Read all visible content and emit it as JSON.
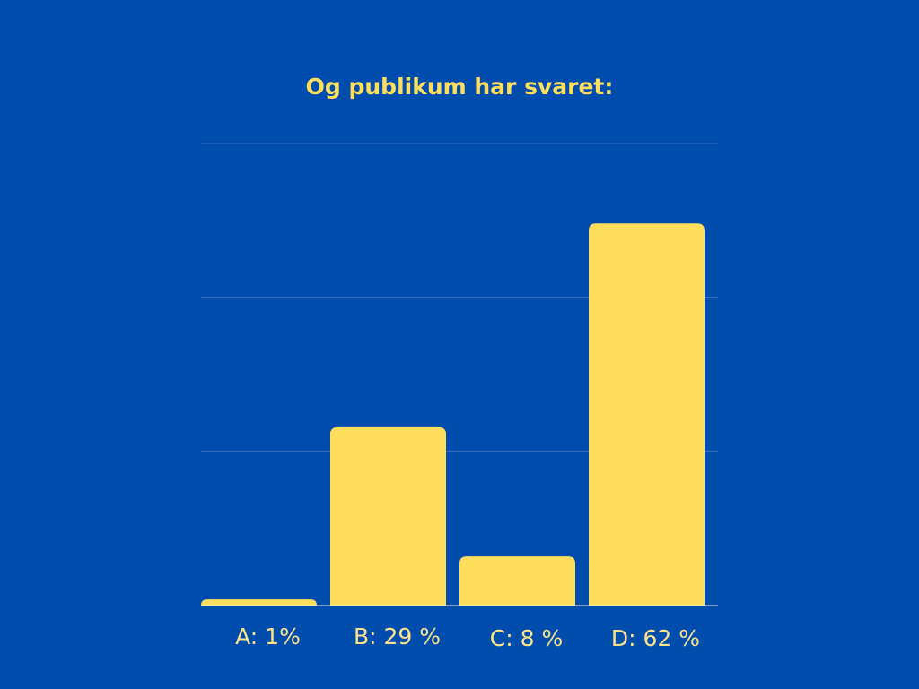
{
  "colors": {
    "background": "#004DAE",
    "bar": "#FFDE5E",
    "title": "#FFDE5E",
    "label": "#FFE38A",
    "gridline": "#3B6BBF",
    "baseline": "#E8E8E8"
  },
  "chart_data": {
    "type": "bar",
    "title": "Og publikum har svaret:",
    "xlabel": "",
    "ylabel": "",
    "categories": [
      "A: 1%",
      "B: 29 %",
      "C: 8 %",
      "D: 62 %"
    ],
    "values": [
      1,
      29,
      8,
      62
    ],
    "ylim": [
      0,
      75
    ],
    "grid": true,
    "legend": "none"
  }
}
